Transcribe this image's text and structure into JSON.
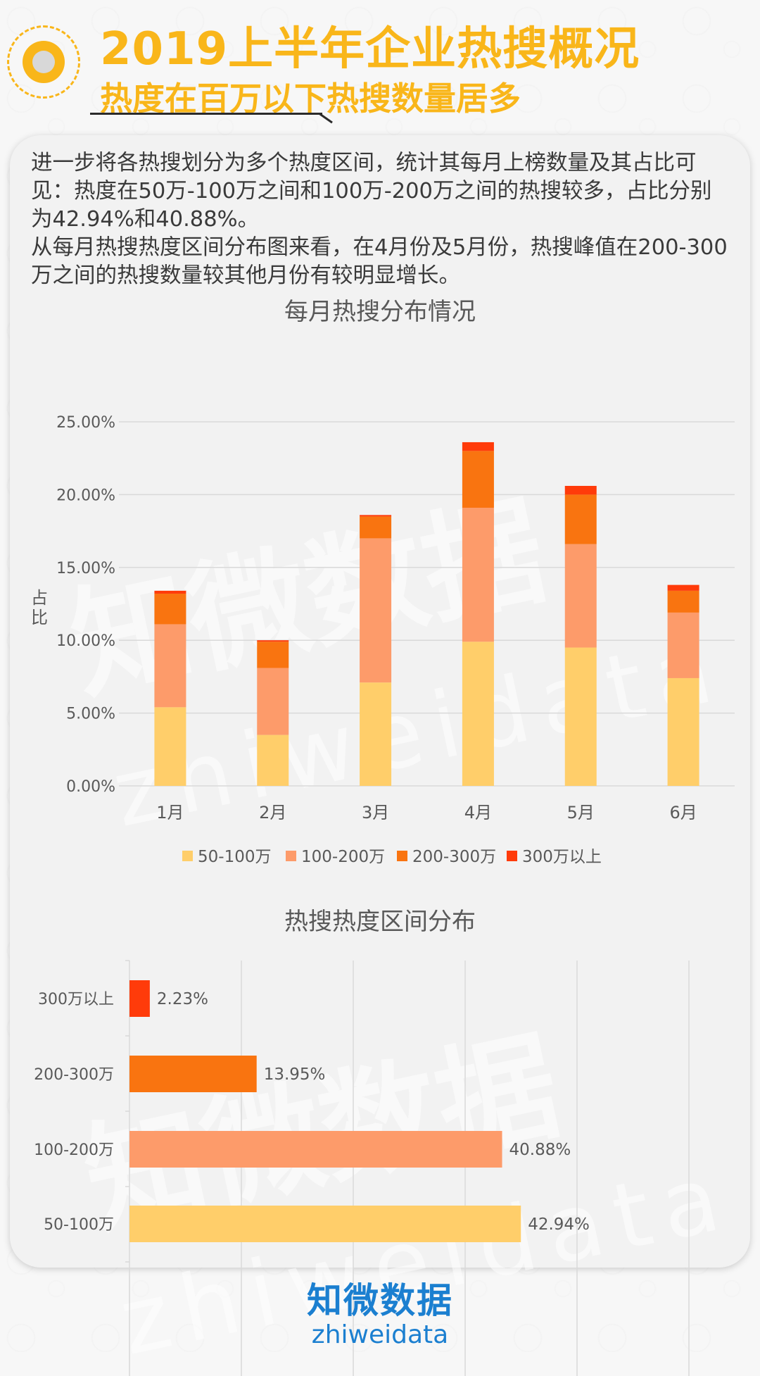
{
  "header": {
    "title": "2019上半年企业热搜概况",
    "subtitle": "热度在百万以下热搜数量居多"
  },
  "intro": {
    "paragraph1": "进一步将各热搜划分为多个热度区间，统计其每月上榜数量及其占比可见：热度在50万-100万之间和100万-200万之间的热搜较多，占比分别为42.94%和40.88%。",
    "paragraph2": "从每月热搜热度区间分布图来看，在4月份及5月份，热搜峰值在200-300万之间的热搜数量较其他月份有较明显增长。"
  },
  "watermark": {
    "cn": "知微数据",
    "en": "zhiweidata"
  },
  "colors": {
    "s1": "#ffce6a",
    "s2": "#fd9b6a",
    "s3": "#f97410",
    "s4": "#ff3b0a",
    "grid": "#d9d9d9",
    "text": "#595959"
  },
  "chart_data": [
    {
      "type": "bar",
      "stacked": true,
      "title": "每月热搜分布情况",
      "ylabel": "占比",
      "categories": [
        "1月",
        "2月",
        "3月",
        "4月",
        "5月",
        "6月"
      ],
      "ylim": [
        0,
        25
      ],
      "yticks": [
        "0.00%",
        "5.00%",
        "10.00%",
        "15.00%",
        "20.00%",
        "25.00%"
      ],
      "yunit": "%",
      "grid": true,
      "legend_position": "bottom",
      "series": [
        {
          "name": "50-100万",
          "values": [
            5.4,
            3.5,
            7.1,
            9.9,
            9.5,
            7.4
          ]
        },
        {
          "name": "100-200万",
          "values": [
            5.7,
            4.6,
            9.9,
            9.2,
            7.1,
            4.5
          ]
        },
        {
          "name": "200-300万",
          "values": [
            2.1,
            1.8,
            1.5,
            3.9,
            3.4,
            1.5
          ]
        },
        {
          "name": "300万以上",
          "values": [
            0.2,
            0.1,
            0.1,
            0.6,
            0.6,
            0.4
          ]
        }
      ]
    },
    {
      "type": "bar",
      "orientation": "horizontal",
      "title": "热搜热度区间分布",
      "categories": [
        "300万以上",
        "200-300万",
        "100-200万",
        "50-100万"
      ],
      "values": [
        2.23,
        13.95,
        40.88,
        42.94
      ],
      "value_labels": [
        "2.23%",
        "13.95%",
        "40.88%",
        "42.94%"
      ],
      "xlim": [
        0,
        50
      ],
      "grid": true
    }
  ],
  "footer": {
    "brand_cn": "知微数据",
    "brand_en": "zhiweidata"
  }
}
